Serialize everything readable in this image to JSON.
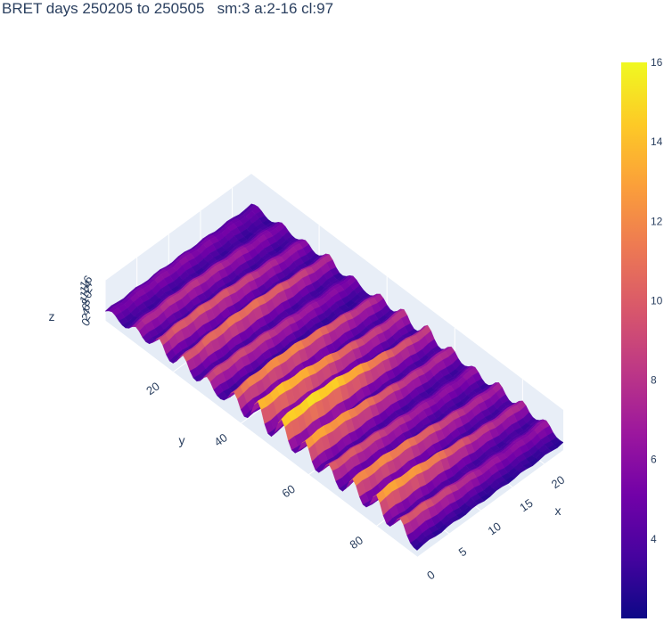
{
  "chart_data": {
    "type": "surface",
    "title": "BRET days 250205 to 250505   sm:3 a:2-16 cl:97",
    "colorscale": [
      "#0d0887",
      "#46039f",
      "#7201a8",
      "#9c179e",
      "#bd3786",
      "#d8576b",
      "#ed7953",
      "#fb9f3a",
      "#fdca26",
      "#f0f921"
    ],
    "x_axis": {
      "label": "x",
      "range": [
        0,
        23
      ],
      "ticks": [
        0,
        5,
        10,
        15,
        20
      ]
    },
    "y_axis": {
      "label": "y",
      "range": [
        0,
        92
      ],
      "ticks": [
        20,
        40,
        60,
        80
      ]
    },
    "z_axis": {
      "label": "z",
      "range": [
        0,
        16
      ],
      "ticks": [
        0,
        2,
        4,
        6,
        8,
        10,
        12,
        14,
        16
      ]
    },
    "colorbar": {
      "range": [
        2,
        16
      ],
      "ticks": [
        4,
        6,
        8,
        10,
        12,
        14,
        16
      ]
    },
    "ridges": [
      {
        "y": 2,
        "peak": 6,
        "offset": 0.02
      },
      {
        "y": 9,
        "peak": 8,
        "offset": 0.1
      },
      {
        "y": 16,
        "peak": 10,
        "offset": 0.18
      },
      {
        "y": 23,
        "peak": 11,
        "offset": 0.06
      },
      {
        "y": 30,
        "peak": 9,
        "offset": 0.25
      },
      {
        "y": 38,
        "peak": 12,
        "offset": 0.14
      },
      {
        "y": 45,
        "peak": 14,
        "offset": 0.3
      },
      {
        "y": 52,
        "peak": 15,
        "offset": 0.22
      },
      {
        "y": 59,
        "peak": 13,
        "offset": 0.35
      },
      {
        "y": 66,
        "peak": 10,
        "offset": 0.4
      },
      {
        "y": 73,
        "peak": 12,
        "offset": 0.28
      },
      {
        "y": 80,
        "peak": 13,
        "offset": 0.33
      },
      {
        "y": 87,
        "peak": 10,
        "offset": 0.45
      }
    ],
    "base_level": 3,
    "grid": true
  }
}
